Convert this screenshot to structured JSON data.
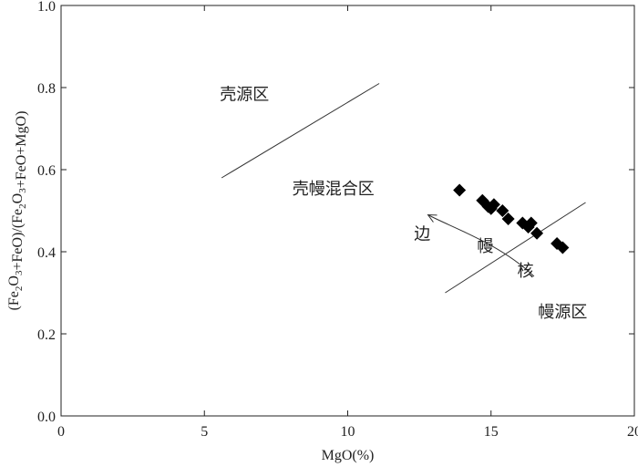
{
  "chart_data": {
    "type": "scatter",
    "xlabel": "MgO(%)",
    "ylabel": "(Fe2O3+FeO)/(Fe2O3+FeO+MgO)",
    "xlim": [
      0,
      20
    ],
    "ylim": [
      0.0,
      1.0
    ],
    "x_ticks": [
      0,
      5,
      10,
      15,
      20
    ],
    "y_ticks": [
      0.0,
      0.2,
      0.4,
      0.6,
      0.8,
      1.0
    ],
    "x_tick_labels": [
      "0",
      "5",
      "10",
      "15",
      "20"
    ],
    "y_tick_labels": [
      "0.0",
      "0.2",
      "0.4",
      "0.6",
      "0.8",
      "1.0"
    ],
    "grid": false,
    "marker": "filled-diamond",
    "series": [
      {
        "x": [
          13.9,
          14.7,
          14.9,
          15.1,
          15.0,
          15.4,
          15.6,
          16.1,
          16.3,
          16.4,
          16.6,
          17.3,
          17.5
        ],
        "y": [
          0.55,
          0.525,
          0.51,
          0.515,
          0.505,
          0.5,
          0.48,
          0.47,
          0.46,
          0.47,
          0.445,
          0.42,
          0.41
        ]
      }
    ],
    "boundary_lines": [
      {
        "x": [
          5.6,
          11.1
        ],
        "y": [
          0.58,
          0.81
        ]
      },
      {
        "x": [
          13.4,
          18.3
        ],
        "y": [
          0.3,
          0.52
        ]
      }
    ],
    "region_labels": [
      {
        "text": "壳源区",
        "x": 6.4,
        "y": 0.77
      },
      {
        "text": "壳幔混合区",
        "x": 9.5,
        "y": 0.54
      },
      {
        "text": "幔源区",
        "x": 17.5,
        "y": 0.24
      }
    ],
    "annotations": [
      {
        "text": "边",
        "x": 12.6,
        "y": 0.43
      },
      {
        "text": "幔",
        "x": 14.8,
        "y": 0.4
      },
      {
        "text": "核",
        "x": 16.2,
        "y": 0.34
      }
    ],
    "trend_arrow": {
      "x": [
        16.5,
        15.3,
        13.6,
        12.8
      ],
      "y": [
        0.34,
        0.42,
        0.46,
        0.49
      ]
    }
  }
}
